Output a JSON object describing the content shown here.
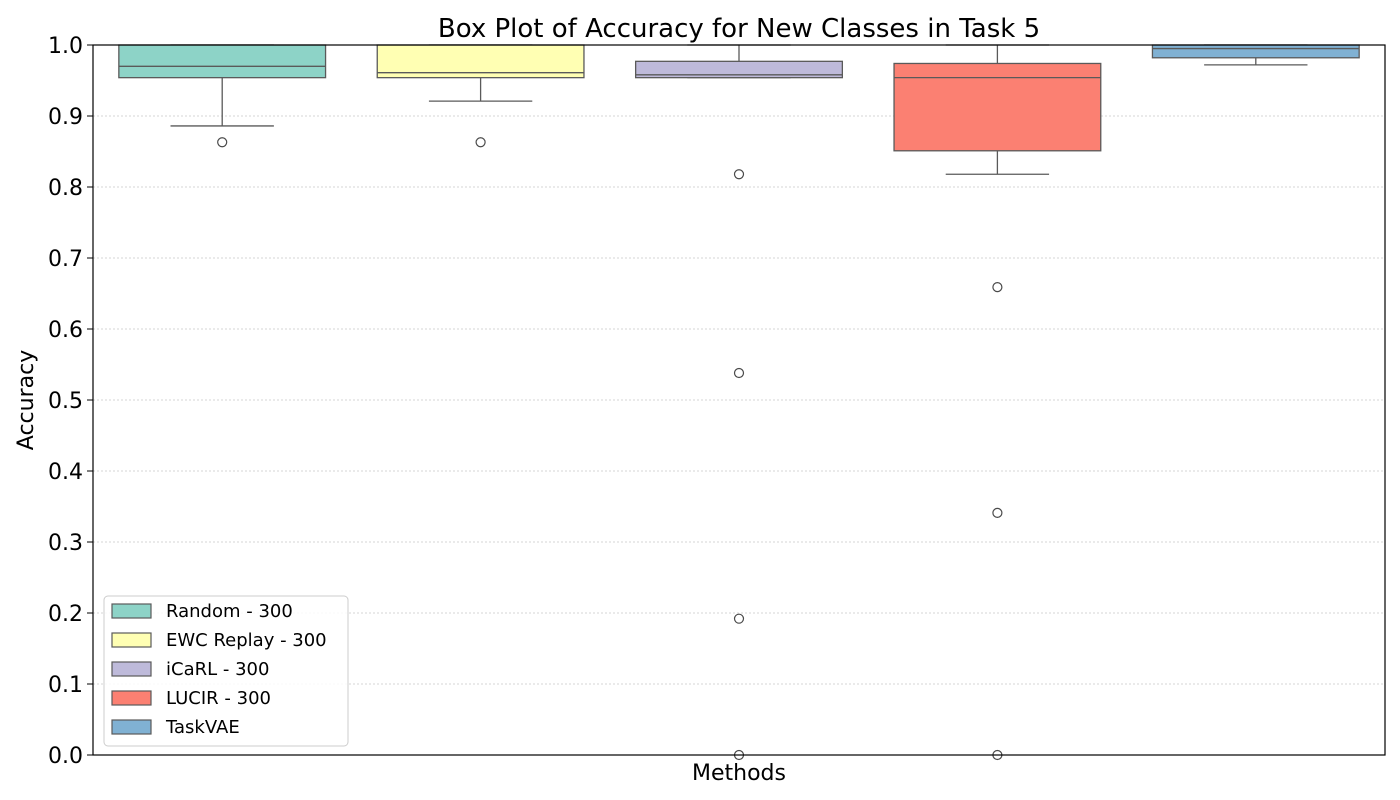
{
  "chart_data": {
    "type": "box",
    "title": "Box Plot of Accuracy for New Classes in Task 5",
    "xlabel": "Methods",
    "ylabel": "Accuracy",
    "ylim": [
      0,
      1.0
    ],
    "yticks": [
      "0.0",
      "0.1",
      "0.2",
      "0.3",
      "0.4",
      "0.5",
      "0.6",
      "0.7",
      "0.8",
      "0.9",
      "1.0"
    ],
    "grid": "horizontal-dotted",
    "legend_position": "lower-left",
    "series": [
      {
        "name": "Random - 300",
        "color": "#8dd3c7",
        "whisker_low": 0.886,
        "q1": 0.954,
        "median": 0.97,
        "q3": 1.0,
        "whisker_high": 1.0,
        "outliers": [
          0.863
        ]
      },
      {
        "name": "EWC Replay - 300",
        "color": "#ffffb3",
        "whisker_low": 0.921,
        "q1": 0.954,
        "median": 0.961,
        "q3": 1.0,
        "whisker_high": 1.0,
        "outliers": [
          0.863
        ]
      },
      {
        "name": "iCaRL - 300",
        "color": "#bebada",
        "whisker_low": 0.954,
        "q1": 0.954,
        "median": 0.958,
        "q3": 0.977,
        "whisker_high": 1.0,
        "outliers": [
          0.818,
          0.538,
          0.192,
          0.0
        ]
      },
      {
        "name": "LUCIR - 300",
        "color": "#fb8072",
        "whisker_low": 0.818,
        "q1": 0.851,
        "median": 0.954,
        "q3": 0.974,
        "whisker_high": 1.0,
        "outliers": [
          0.659,
          0.341,
          0.0
        ]
      },
      {
        "name": "TaskVAE",
        "color": "#80b1d3",
        "whisker_low": 0.972,
        "q1": 0.982,
        "median": 0.995,
        "q3": 1.0,
        "whisker_high": 1.0,
        "outliers": []
      }
    ]
  }
}
